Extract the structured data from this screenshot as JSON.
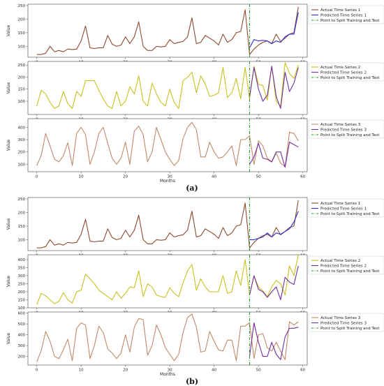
{
  "split_x": 48,
  "chart_data": [
    {
      "type": "line",
      "group": "a",
      "ylabel": "Value",
      "xlabel": "",
      "xlim": [
        -2,
        61
      ],
      "ylim": [
        60,
        255
      ],
      "yticks": [
        100,
        150,
        200,
        250
      ],
      "xticks": [
        0,
        10,
        20,
        30,
        40,
        50,
        60
      ],
      "legend": "top-right",
      "legend_entries": [
        "Actual Time Series 1",
        "Predicted Time Series 1",
        "Point to Split Training and Test"
      ],
      "series": [
        {
          "name": "Actual Time Series 1",
          "color": "#8c4a2f",
          "x": [
            0,
            1,
            2,
            3,
            4,
            5,
            6,
            7,
            8,
            9,
            10,
            11,
            12,
            13,
            14,
            15,
            16,
            17,
            18,
            19,
            20,
            21,
            22,
            23,
            24,
            25,
            26,
            27,
            28,
            29,
            30,
            31,
            32,
            33,
            34,
            35,
            36,
            37,
            38,
            39,
            40,
            41,
            42,
            43,
            44,
            45,
            46,
            47,
            48,
            49,
            50,
            51,
            52,
            53,
            54,
            55,
            56,
            57,
            58,
            59
          ],
          "values": [
            70,
            70,
            75,
            100,
            80,
            85,
            80,
            90,
            88,
            90,
            120,
            175,
            95,
            92,
            95,
            95,
            140,
            108,
            100,
            105,
            135,
            110,
            135,
            190,
            100,
            85,
            85,
            100,
            98,
            100,
            125,
            110,
            115,
            118,
            135,
            205,
            110,
            115,
            140,
            130,
            120,
            105,
            145,
            115,
            125,
            150,
            155,
            235,
            70,
            90,
            105,
            115,
            120,
            110,
            145,
            118,
            130,
            145,
            150,
            245
          ]
        },
        {
          "name": "Predicted Time Series 1",
          "color": "#2a2ad0",
          "x": [
            48,
            49,
            50,
            51,
            52,
            53,
            54,
            55,
            56,
            57,
            58,
            59
          ],
          "values": [
            95,
            125,
            120,
            122,
            120,
            110,
            120,
            115,
            135,
            145,
            145,
            225
          ]
        }
      ]
    },
    {
      "type": "line",
      "group": "a",
      "ylabel": "Value",
      "xlabel": "",
      "xlim": [
        -2,
        61
      ],
      "ylim": [
        45,
        265
      ],
      "yticks": [
        100,
        150,
        200,
        250
      ],
      "xticks": [
        0,
        10,
        20,
        30,
        40,
        50,
        60
      ],
      "legend": "top-right",
      "legend_entries": [
        "Actual Time Series 2",
        "Predicted Time Series 2",
        "Point to Split Training and Test"
      ],
      "series": [
        {
          "name": "Actual Time Series 2",
          "color": "#c8c020",
          "x": [
            0,
            1,
            2,
            3,
            4,
            5,
            6,
            7,
            8,
            9,
            10,
            11,
            12,
            13,
            14,
            15,
            16,
            17,
            18,
            19,
            20,
            21,
            22,
            23,
            24,
            25,
            26,
            27,
            28,
            29,
            30,
            31,
            32,
            33,
            34,
            35,
            36,
            37,
            38,
            39,
            40,
            41,
            42,
            43,
            44,
            45,
            46,
            47,
            48,
            49,
            50,
            51,
            52,
            53,
            54,
            55,
            56,
            57,
            58,
            59
          ],
          "values": [
            80,
            145,
            130,
            95,
            70,
            80,
            140,
            90,
            70,
            140,
            120,
            185,
            185,
            185,
            145,
            110,
            80,
            70,
            140,
            80,
            100,
            160,
            130,
            205,
            100,
            80,
            175,
            130,
            95,
            80,
            150,
            95,
            70,
            185,
            200,
            220,
            135,
            205,
            170,
            120,
            125,
            135,
            240,
            115,
            135,
            195,
            110,
            240,
            110,
            245,
            170,
            165,
            105,
            245,
            100,
            80,
            260,
            215,
            195,
            250
          ]
        },
        {
          "name": "Predicted Time Series 2",
          "color": "#7030a0",
          "x": [
            48,
            49,
            50,
            51,
            52,
            53,
            54,
            55,
            56,
            57,
            58,
            59
          ],
          "values": [
            120,
            240,
            150,
            100,
            125,
            245,
            120,
            70,
            220,
            140,
            175,
            240
          ]
        }
      ]
    },
    {
      "type": "line",
      "group": "a",
      "ylabel": "Value",
      "xlabel": "Months",
      "xlim": [
        -2,
        61
      ],
      "ylim": [
        40,
        470
      ],
      "yticks": [
        100,
        200,
        300,
        400
      ],
      "xticks": [
        0,
        10,
        20,
        30,
        40,
        50,
        60
      ],
      "legend": "top-right",
      "legend_entries": [
        "Actual Time Series 3",
        "Predicted Time Series 3",
        "Point to Split Training and Test"
      ],
      "series": [
        {
          "name": "Actual Time Series 3",
          "color": "#c08a6a",
          "x": [
            0,
            1,
            2,
            3,
            4,
            5,
            6,
            7,
            8,
            9,
            10,
            11,
            12,
            13,
            14,
            15,
            16,
            17,
            18,
            19,
            20,
            21,
            22,
            23,
            24,
            25,
            26,
            27,
            28,
            29,
            30,
            31,
            32,
            33,
            34,
            35,
            36,
            37,
            38,
            39,
            40,
            41,
            42,
            43,
            44,
            45,
            46,
            47,
            48,
            49,
            50,
            51,
            52,
            53,
            54,
            55,
            56,
            57,
            58,
            59
          ],
          "values": [
            90,
            170,
            350,
            250,
            140,
            120,
            170,
            275,
            90,
            350,
            400,
            340,
            100,
            200,
            350,
            400,
            270,
            150,
            100,
            150,
            280,
            100,
            370,
            410,
            340,
            120,
            200,
            400,
            300,
            200,
            140,
            90,
            130,
            310,
            400,
            440,
            380,
            160,
            160,
            280,
            200,
            150,
            160,
            200,
            250,
            90,
            300,
            300,
            330,
            100,
            290,
            250,
            150,
            120,
            190,
            110,
            80,
            360,
            350,
            290
          ]
        },
        {
          "name": "Predicted Time Series 3",
          "color": "#7030a0",
          "x": [
            48,
            49,
            50,
            51,
            52,
            53,
            54,
            55,
            56,
            57,
            58,
            59
          ],
          "values": [
            100,
            160,
            270,
            150,
            140,
            120,
            200,
            200,
            75,
            280,
            260,
            240
          ]
        }
      ]
    },
    {
      "type": "line",
      "group": "b",
      "ylabel": "Value",
      "xlabel": "",
      "xlim": [
        -2,
        61
      ],
      "ylim": [
        60,
        255
      ],
      "yticks": [
        100,
        150,
        200,
        250
      ],
      "xticks": [
        0,
        10,
        20,
        30,
        40,
        50,
        60
      ],
      "legend": "top-right",
      "legend_entries": [
        "Actual Time Series 1",
        "Predicted Time Series 1",
        "Point to Split Training and Test"
      ],
      "series": [
        {
          "name": "Actual Time Series 1",
          "color": "#8c4a2f",
          "x": [
            0,
            1,
            2,
            3,
            4,
            5,
            6,
            7,
            8,
            9,
            10,
            11,
            12,
            13,
            14,
            15,
            16,
            17,
            18,
            19,
            20,
            21,
            22,
            23,
            24,
            25,
            26,
            27,
            28,
            29,
            30,
            31,
            32,
            33,
            34,
            35,
            36,
            37,
            38,
            39,
            40,
            41,
            42,
            43,
            44,
            45,
            46,
            47,
            48,
            49,
            50,
            51,
            52,
            53,
            54,
            55,
            56,
            57,
            58,
            59
          ],
          "values": [
            70,
            70,
            75,
            100,
            80,
            85,
            80,
            90,
            88,
            90,
            120,
            175,
            95,
            92,
            95,
            95,
            140,
            108,
            100,
            105,
            135,
            110,
            135,
            190,
            100,
            85,
            85,
            100,
            98,
            100,
            125,
            110,
            115,
            118,
            135,
            205,
            110,
            115,
            140,
            130,
            120,
            105,
            145,
            115,
            125,
            150,
            155,
            235,
            70,
            90,
            105,
            115,
            120,
            110,
            145,
            118,
            130,
            145,
            150,
            245
          ]
        },
        {
          "name": "Predicted Time Series 1",
          "color": "#2a2ad0",
          "x": [
            48,
            49,
            50,
            51,
            52,
            53,
            54,
            55,
            56,
            57,
            58,
            59
          ],
          "values": [
            100,
            100,
            105,
            110,
            125,
            110,
            125,
            120,
            130,
            140,
            165,
            205
          ]
        }
      ]
    },
    {
      "type": "line",
      "group": "b",
      "ylabel": "Value",
      "xlabel": "",
      "xlim": [
        -2,
        61
      ],
      "ylim": [
        100,
        430
      ],
      "yticks": [
        100,
        150,
        200,
        250,
        300,
        350,
        400
      ],
      "xticks": [
        0,
        10,
        20,
        30,
        40,
        50,
        60
      ],
      "legend": "top-right",
      "legend_entries": [
        "Actual Time Series 2",
        "Predicted Time Series 2",
        "Point to Split Training and Test"
      ],
      "series": [
        {
          "name": "Actual Time Series 2",
          "color": "#c8c020",
          "x": [
            0,
            1,
            2,
            3,
            4,
            5,
            6,
            7,
            8,
            9,
            10,
            11,
            12,
            13,
            14,
            15,
            16,
            17,
            18,
            19,
            20,
            21,
            22,
            23,
            24,
            25,
            26,
            27,
            28,
            29,
            30,
            31,
            32,
            33,
            34,
            35,
            36,
            37,
            38,
            39,
            40,
            41,
            42,
            43,
            44,
            45,
            46,
            47,
            48,
            49,
            50,
            51,
            52,
            53,
            54,
            55,
            56,
            57,
            58,
            59
          ],
          "values": [
            120,
            190,
            175,
            150,
            125,
            140,
            195,
            150,
            130,
            200,
            210,
            310,
            280,
            250,
            210,
            190,
            170,
            150,
            200,
            160,
            190,
            230,
            225,
            330,
            170,
            250,
            230,
            180,
            170,
            165,
            225,
            190,
            170,
            255,
            330,
            370,
            210,
            280,
            230,
            200,
            200,
            200,
            300,
            190,
            200,
            330,
            240,
            400,
            180,
            300,
            230,
            205,
            170,
            230,
            270,
            250,
            180,
            360,
            300,
            430
          ]
        },
        {
          "name": "Predicted Time Series 2",
          "color": "#7030a0",
          "x": [
            48,
            49,
            50,
            51,
            52,
            53,
            54,
            55,
            56,
            57,
            58,
            59
          ],
          "values": [
            180,
            300,
            215,
            200,
            165,
            200,
            230,
            150,
            290,
            260,
            245,
            360
          ]
        }
      ]
    },
    {
      "type": "line",
      "group": "b",
      "ylabel": "Value",
      "xlabel": "Months",
      "xlim": [
        -2,
        61
      ],
      "ylim": [
        120,
        610
      ],
      "yticks": [
        200,
        300,
        400,
        500,
        600
      ],
      "xticks": [
        0,
        10,
        20,
        30,
        40,
        50,
        60
      ],
      "legend": "top-right",
      "legend_entries": [
        "Actual Time Series 3",
        "Predicted Time Series 3",
        "Point to Split Training and Test"
      ],
      "series": [
        {
          "name": "Actual Time Series 3",
          "color": "#c08a6a",
          "x": [
            0,
            1,
            2,
            3,
            4,
            5,
            6,
            7,
            8,
            9,
            10,
            11,
            12,
            13,
            14,
            15,
            16,
            17,
            18,
            19,
            20,
            21,
            22,
            23,
            24,
            25,
            26,
            27,
            28,
            29,
            30,
            31,
            32,
            33,
            34,
            35,
            36,
            37,
            38,
            39,
            40,
            41,
            42,
            43,
            44,
            45,
            46,
            47,
            48,
            49,
            50,
            51,
            52,
            53,
            54,
            55,
            56,
            57,
            58,
            59
          ],
          "values": [
            150,
            250,
            430,
            340,
            200,
            180,
            260,
            360,
            160,
            460,
            510,
            490,
            180,
            300,
            480,
            420,
            270,
            230,
            180,
            230,
            400,
            240,
            470,
            550,
            540,
            210,
            300,
            490,
            400,
            280,
            220,
            160,
            220,
            420,
            560,
            590,
            470,
            240,
            250,
            430,
            340,
            260,
            250,
            350,
            350,
            160,
            480,
            480,
            510,
            180,
            400,
            410,
            280,
            250,
            330,
            250,
            170,
            520,
            490,
            520
          ]
        },
        {
          "name": "Predicted Time Series 3",
          "color": "#7030a0",
          "x": [
            48,
            49,
            50,
            51,
            52,
            53,
            54,
            55,
            56,
            57,
            58,
            59
          ],
          "values": [
            200,
            510,
            330,
            200,
            200,
            330,
            220,
            170,
            380,
            460,
            460,
            470
          ]
        }
      ]
    }
  ],
  "captions": {
    "a": "(a)",
    "b": "(b)"
  }
}
